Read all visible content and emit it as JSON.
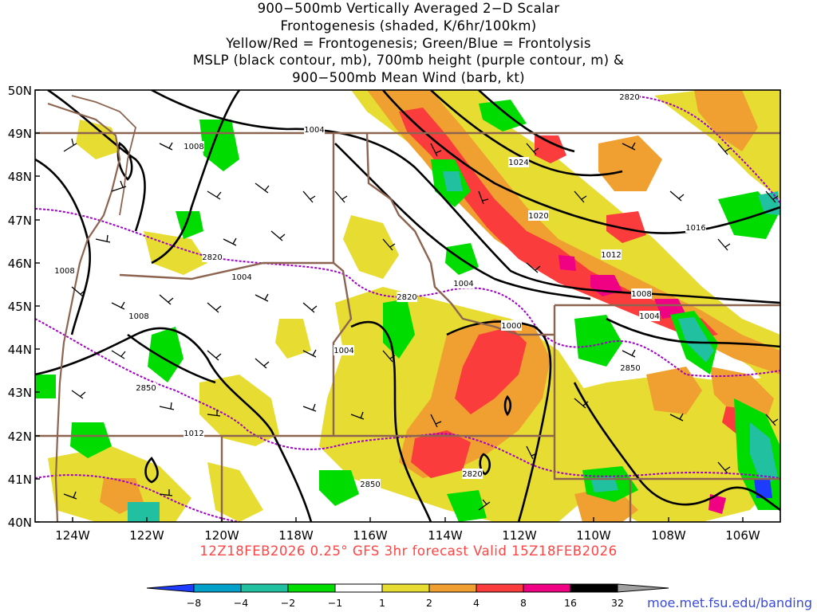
{
  "title": {
    "lines": [
      "900−500mb Vertically Averaged 2−D Scalar",
      "Frontogenesis (shaded, K/6hr/100km)",
      "Yellow/Red = Frontogenesis;  Green/Blue = Frontolysis",
      "MSLP (black contour, mb), 700mb height (purple contour, m) &",
      "900−500mb Mean Wind (barb, kt)"
    ]
  },
  "map": {
    "lon_range": [
      -125,
      -105
    ],
    "lat_range": [
      40,
      50
    ],
    "lat_labels": [
      "40N",
      "41N",
      "42N",
      "43N",
      "44N",
      "45N",
      "46N",
      "47N",
      "48N",
      "49N",
      "50N"
    ],
    "lon_labels": [
      "124W",
      "122W",
      "120W",
      "118W",
      "116W",
      "114W",
      "112W",
      "110W",
      "108W",
      "106W"
    ],
    "mslp_labels": [
      "1004",
      "1008",
      "1024",
      "1020",
      "1016",
      "1012",
      "1004",
      "1008",
      "1004",
      "1000",
      "1004",
      "1008",
      "1012",
      "1004",
      "1008"
    ],
    "height_labels": [
      "2820",
      "2820",
      "2820",
      "2850",
      "2850",
      "2820",
      "2850"
    ],
    "colors": {
      "frontogenesis_1": "#e6dc32",
      "frontogenesis_2": "#f0a030",
      "frontogenesis_4": "#fa3c3c",
      "frontogenesis_8": "#f00082",
      "frontolysis_1": "#00dc00",
      "frontolysis_2": "#20c0a0",
      "mslp_contour": "#000000",
      "height_contour": "#a000c8",
      "state_borders": "#8c6450"
    }
  },
  "colorbar": {
    "labels": [
      "−8",
      "−4",
      "−2",
      "−1",
      "1",
      "2",
      "4",
      "8",
      "16",
      "32"
    ],
    "colors": [
      "#1e3cff",
      "#00a0c8",
      "#20c0a0",
      "#00dc00",
      "#ffffff",
      "#e6dc32",
      "#f0a030",
      "#fa3c3c",
      "#f00082",
      "#000000",
      "#a0a0a0"
    ]
  },
  "footer": "12Z18FEB2026 0.25° GFS 3hr forecast Valid 15Z18FEB2026",
  "credit": "moe.met.fsu.edu/banding"
}
